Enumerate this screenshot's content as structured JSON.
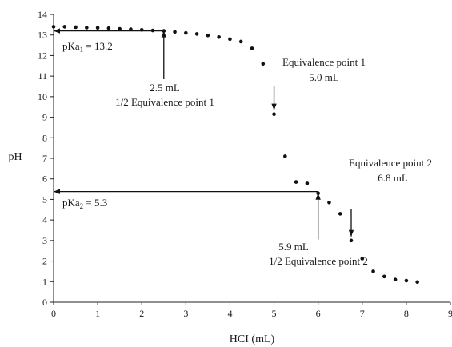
{
  "chart_data": {
    "type": "scatter",
    "xlabel": "HCI (mL)",
    "ylabel": "pH",
    "xlim": [
      0,
      9
    ],
    "ylim": [
      0,
      14
    ],
    "xticks": [
      "0",
      "1",
      "2",
      "3",
      "4",
      "5",
      "6",
      "7",
      "8",
      "9"
    ],
    "yticks": [
      "0",
      "1",
      "2",
      "3",
      "4",
      "5",
      "6",
      "7",
      "8",
      "9",
      "10",
      "11",
      "12",
      "13",
      "14"
    ],
    "grid": false,
    "points": [
      {
        "x": 0.0,
        "y": 13.4
      },
      {
        "x": 0.25,
        "y": 13.4
      },
      {
        "x": 0.5,
        "y": 13.38
      },
      {
        "x": 0.75,
        "y": 13.36
      },
      {
        "x": 1.0,
        "y": 13.35
      },
      {
        "x": 1.25,
        "y": 13.33
      },
      {
        "x": 1.5,
        "y": 13.3
      },
      {
        "x": 1.75,
        "y": 13.28
      },
      {
        "x": 2.0,
        "y": 13.25
      },
      {
        "x": 2.25,
        "y": 13.22
      },
      {
        "x": 2.5,
        "y": 13.2
      },
      {
        "x": 2.75,
        "y": 13.15
      },
      {
        "x": 3.0,
        "y": 13.1
      },
      {
        "x": 3.25,
        "y": 13.05
      },
      {
        "x": 3.5,
        "y": 12.98
      },
      {
        "x": 3.75,
        "y": 12.9
      },
      {
        "x": 4.0,
        "y": 12.8
      },
      {
        "x": 4.25,
        "y": 12.68
      },
      {
        "x": 4.5,
        "y": 12.35
      },
      {
        "x": 4.75,
        "y": 11.6
      },
      {
        "x": 5.0,
        "y": 9.15
      },
      {
        "x": 5.25,
        "y": 7.1
      },
      {
        "x": 5.5,
        "y": 5.85
      },
      {
        "x": 5.75,
        "y": 5.78
      },
      {
        "x": 6.0,
        "y": 5.3
      },
      {
        "x": 6.25,
        "y": 4.85
      },
      {
        "x": 6.5,
        "y": 4.3
      },
      {
        "x": 6.75,
        "y": 3.0
      },
      {
        "x": 7.0,
        "y": 2.12
      },
      {
        "x": 7.25,
        "y": 1.5
      },
      {
        "x": 7.5,
        "y": 1.25
      },
      {
        "x": 7.75,
        "y": 1.1
      },
      {
        "x": 8.0,
        "y": 1.05
      },
      {
        "x": 8.25,
        "y": 0.98
      }
    ],
    "annotations": {
      "pka1": "pKa",
      "pka1_sub": "1",
      "pka1_value": " = 13.2",
      "half_eq1_volume": "2.5 mL",
      "half_eq1_label": "1/2 Equivalence point 1",
      "eq1_label": "Equivalence point 1",
      "eq1_volume": "5.0 mL",
      "eq2_label": "Equivalence point 2",
      "eq2_volume": "6.8 mL",
      "pka2": "pKa",
      "pka2_sub": "2",
      "pka2_value": " = 5.3",
      "half_eq2_volume": "5.9 mL",
      "half_eq2_label": "1/2 Equivalence point 2"
    },
    "arrows": {
      "pka1_horizontal": {
        "from": [
          2.5,
          13.2
        ],
        "to": [
          0,
          13.2
        ]
      },
      "half_eq1_vertical": {
        "from": [
          2.5,
          10.85
        ],
        "to": [
          2.5,
          13.2
        ]
      },
      "eq1_vertical": {
        "from": [
          5.0,
          10.5
        ],
        "to": [
          5.0,
          9.35
        ]
      },
      "eq2_vertical": {
        "from": [
          6.75,
          4.55
        ],
        "to": [
          6.75,
          3.2
        ]
      },
      "pka2_horizontal": {
        "from": [
          6.0,
          5.38
        ],
        "to": [
          0,
          5.38
        ]
      },
      "half_eq2_vertical": {
        "from": [
          6.0,
          3.05
        ],
        "to": [
          6.0,
          5.3
        ]
      }
    }
  }
}
